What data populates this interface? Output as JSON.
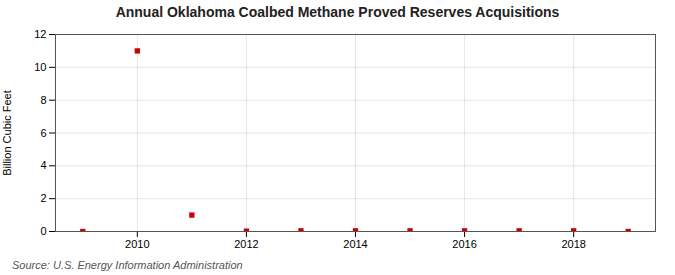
{
  "chart_data": {
    "type": "scatter",
    "title": "Annual Oklahoma Coalbed Methane Proved Reserves Acquisitions",
    "ylabel": "Billion Cubic Feet",
    "source": "Source: U.S. Energy Information Administration",
    "x": [
      2009,
      2010,
      2011,
      2012,
      2013,
      2014,
      2015,
      2016,
      2017,
      2018,
      2019
    ],
    "values": [
      0.0,
      11.0,
      1.0,
      0.02,
      0.04,
      0.04,
      0.04,
      0.04,
      0.04,
      0.04,
      0.0
    ],
    "color": "#cc0000",
    "marker": "square",
    "xlim": [
      2008.5,
      2019.5
    ],
    "xticks": [
      2010,
      2012,
      2014,
      2016,
      2018
    ],
    "ylim": [
      0,
      12
    ],
    "yticks": [
      0,
      2,
      4,
      6,
      8,
      10,
      12
    ],
    "grid": true
  }
}
